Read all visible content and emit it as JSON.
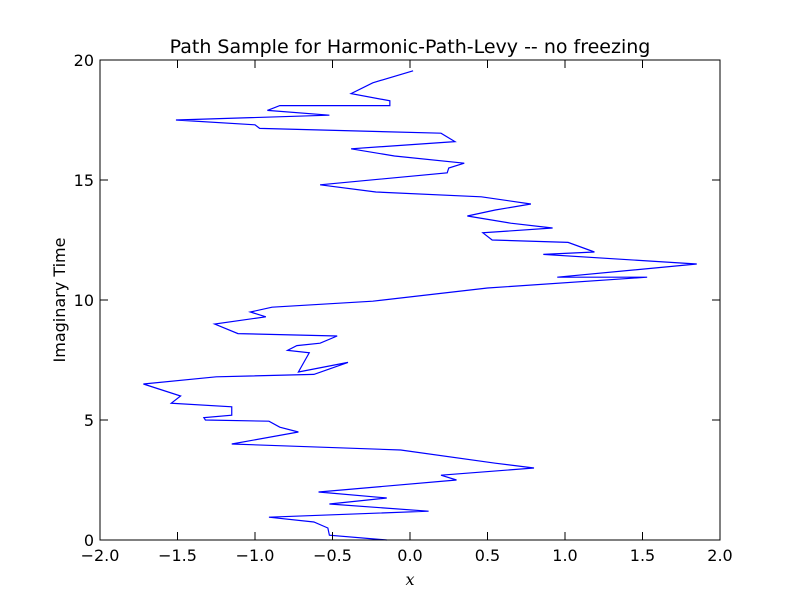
{
  "chart_data": {
    "type": "line",
    "title": "Path Sample for Harmonic-Path-Levy -- no freezing",
    "xlabel": "x",
    "ylabel": "Imaginary Time",
    "xlim": [
      -2.0,
      2.0
    ],
    "ylim": [
      0,
      20
    ],
    "xticks": [
      -2.0,
      -1.5,
      -1.0,
      -0.5,
      0.0,
      0.5,
      1.0,
      1.5,
      2.0
    ],
    "xtick_labels": [
      "−2.0",
      "−1.5",
      "−1.0",
      "−0.5",
      "0.0",
      "0.5",
      "1.0",
      "1.5",
      "2.0"
    ],
    "yticks": [
      0,
      5,
      10,
      15,
      20
    ],
    "ytick_labels": [
      "0",
      "5",
      "10",
      "15",
      "20"
    ],
    "grid": false,
    "series": [
      {
        "color": "#0000ff",
        "x": [
          -0.15,
          -0.52,
          -0.53,
          -0.62,
          -0.91,
          0.12,
          -0.52,
          -0.15,
          -0.59,
          0.3,
          0.2,
          0.8,
          0.55,
          -0.06,
          -1.15,
          -0.72,
          -0.84,
          -0.91,
          -1.32,
          -1.33,
          -1.15,
          -1.15,
          -1.54,
          -1.48,
          -1.72,
          -1.25,
          -0.62,
          -0.4,
          -0.72,
          -0.65,
          -0.79,
          -0.73,
          -0.58,
          -0.47,
          -1.11,
          -1.26,
          -0.93,
          -1.03,
          -0.89,
          -0.24,
          0.5,
          1.53,
          0.95,
          1.85,
          0.86,
          1.19,
          1.02,
          0.53,
          0.47,
          0.92,
          0.65,
          0.37,
          0.55,
          0.78,
          0.46,
          -0.22,
          -0.58,
          0.24,
          0.25,
          0.35,
          -0.1,
          -0.38,
          0.29,
          0.2,
          -0.97,
          -1.0,
          -1.51,
          -0.52,
          -0.92,
          -0.84,
          -0.13,
          -0.13,
          -0.38,
          -0.24,
          0.02
        ],
        "y": [
          0.0,
          0.2,
          0.5,
          0.75,
          0.95,
          1.2,
          1.5,
          1.75,
          2.0,
          2.5,
          2.7,
          3.0,
          3.2,
          3.75,
          4.0,
          4.5,
          4.7,
          4.95,
          5.0,
          5.1,
          5.2,
          5.55,
          5.7,
          6.0,
          6.5,
          6.8,
          6.9,
          7.4,
          7.0,
          7.8,
          7.9,
          8.1,
          8.2,
          8.5,
          8.6,
          9.0,
          9.3,
          9.5,
          9.7,
          9.95,
          10.5,
          10.95,
          10.95,
          11.5,
          11.9,
          12.0,
          12.4,
          12.5,
          12.8,
          13.0,
          13.2,
          13.5,
          13.75,
          14.0,
          14.3,
          14.5,
          14.8,
          15.3,
          15.5,
          15.7,
          16.0,
          16.3,
          16.6,
          16.95,
          17.15,
          17.3,
          17.5,
          17.7,
          17.9,
          18.1,
          18.1,
          18.3,
          18.6,
          19.05,
          19.55
        ]
      }
    ]
  }
}
